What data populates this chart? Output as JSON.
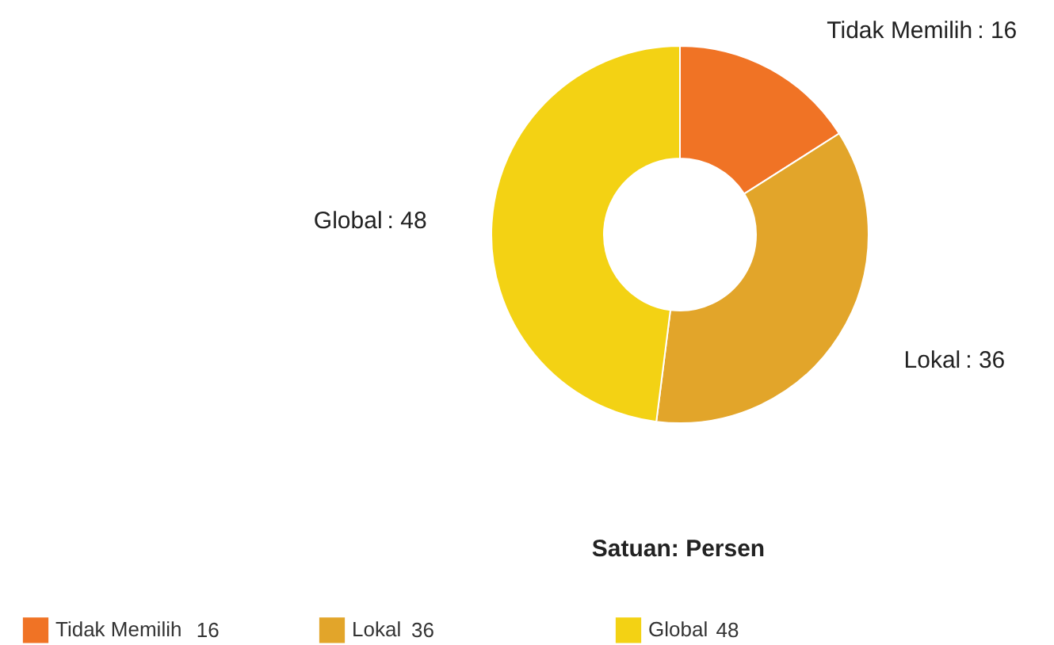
{
  "chart_data": {
    "type": "donut",
    "categories": [
      "Tidak Memilih",
      "Lokal",
      "Global"
    ],
    "values": [
      16,
      36,
      48
    ],
    "colors": [
      "#f07325",
      "#e2a52a",
      "#f3d214"
    ],
    "value_labels": [
      ": 16",
      ": 36",
      ": 48"
    ],
    "legend": "bottom",
    "annotations": [
      "Satuan: Persen",
      "16",
      "36",
      "48"
    ]
  }
}
